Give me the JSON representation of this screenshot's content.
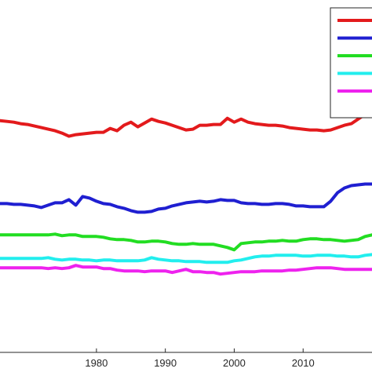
{
  "chart_data": {
    "type": "line",
    "title": "",
    "xlabel": "",
    "ylabel": "",
    "xlim": [
      1966,
      2020
    ],
    "ylim": [
      0,
      450
    ],
    "grid": false,
    "legend_position": "top-right",
    "x_ticks": [
      1980,
      1990,
      2000,
      2010
    ],
    "x_tick_labels": [
      "1980",
      "1990",
      "2000",
      "2010"
    ],
    "x": [
      1966,
      1967,
      1968,
      1969,
      1970,
      1971,
      1972,
      1973,
      1974,
      1975,
      1976,
      1977,
      1978,
      1979,
      1980,
      1981,
      1982,
      1983,
      1984,
      1985,
      1986,
      1987,
      1988,
      1989,
      1990,
      1991,
      1992,
      1993,
      1994,
      1995,
      1996,
      1997,
      1998,
      1999,
      2000,
      2001,
      2002,
      2003,
      2004,
      2005,
      2006,
      2007,
      2008,
      2009,
      2010,
      2011,
      2012,
      2013,
      2014,
      2015,
      2016,
      2017,
      2018,
      2019,
      2020
    ],
    "series": [
      {
        "color": "#e31a1c",
        "values": [
          296,
          295,
          294,
          292,
          291,
          289,
          287,
          285,
          283,
          280,
          276,
          278,
          279,
          280,
          281,
          281,
          286,
          283,
          290,
          294,
          288,
          293,
          298,
          295,
          293,
          290,
          287,
          284,
          285,
          290,
          290,
          291,
          291,
          299,
          294,
          298,
          294,
          292,
          291,
          290,
          290,
          289,
          287,
          286,
          285,
          284,
          284,
          283,
          284,
          287,
          290,
          292,
          298,
          304,
          310
        ]
      },
      {
        "color": "#1f1fd1",
        "values": [
          190,
          190,
          189,
          189,
          188,
          187,
          185,
          188,
          191,
          191,
          195,
          188,
          199,
          197,
          193,
          190,
          189,
          186,
          184,
          181,
          179,
          179,
          180,
          183,
          184,
          187,
          189,
          191,
          192,
          193,
          192,
          193,
          195,
          194,
          194,
          191,
          190,
          190,
          189,
          189,
          190,
          190,
          189,
          187,
          187,
          186,
          186,
          186,
          193,
          204,
          210,
          213,
          214,
          215,
          215
        ]
      },
      {
        "color": "#22dd22",
        "values": [
          150,
          150,
          150,
          150,
          150,
          150,
          150,
          150,
          151,
          149,
          150,
          150,
          148,
          148,
          148,
          147,
          145,
          144,
          144,
          143,
          141,
          141,
          142,
          142,
          141,
          139,
          138,
          138,
          139,
          138,
          138,
          138,
          136,
          134,
          131,
          139,
          140,
          141,
          141,
          142,
          142,
          143,
          142,
          142,
          144,
          145,
          145,
          144,
          144,
          143,
          142,
          143,
          144,
          148,
          150
        ]
      },
      {
        "color": "#22eeee",
        "values": [
          120,
          120,
          120,
          120,
          120,
          120,
          120,
          121,
          119,
          118,
          119,
          119,
          118,
          118,
          117,
          118,
          118,
          117,
          117,
          117,
          117,
          118,
          121,
          119,
          118,
          117,
          117,
          116,
          116,
          116,
          115,
          115,
          115,
          115,
          117,
          118,
          120,
          122,
          123,
          123,
          124,
          124,
          124,
          124,
          123,
          123,
          124,
          124,
          124,
          123,
          123,
          122,
          122,
          124,
          125
        ]
      },
      {
        "color": "#ee22ee",
        "values": [
          108,
          108,
          108,
          108,
          108,
          108,
          108,
          107,
          108,
          107,
          108,
          111,
          109,
          109,
          109,
          107,
          107,
          105,
          104,
          104,
          104,
          103,
          104,
          104,
          104,
          102,
          104,
          106,
          103,
          103,
          102,
          102,
          100,
          101,
          102,
          103,
          103,
          103,
          104,
          104,
          104,
          104,
          105,
          105,
          106,
          107,
          108,
          108,
          108,
          107,
          106,
          106,
          106,
          106,
          106
        ]
      }
    ],
    "legend_entries": [
      "",
      "",
      "",
      "",
      ""
    ]
  }
}
